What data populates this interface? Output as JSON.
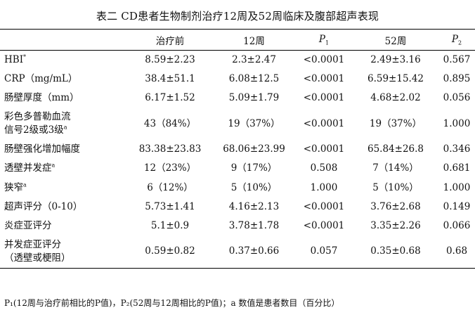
{
  "table": {
    "title": "表二 CD患者生物制剂治疗12周及52周临床及腹部超声表现",
    "headers": {
      "col1": "治疗前",
      "col2": "12周",
      "col3_main": "P",
      "col3_sub": "1",
      "col4": "52周",
      "col5_main": "P",
      "col5_sub": "2"
    },
    "rows": [
      {
        "label": "HBI",
        "mark": "*",
        "v1": "8.59±2.23",
        "v2": "2.3±2.47",
        "p1": "<0.0001",
        "v3": "2.49±3.16",
        "p2": "0.567"
      },
      {
        "label": "CRP（mg/mL）",
        "mark": "",
        "v1": "38.4±51.1",
        "v2": "6.08±12.5",
        "p1": "<0.0001",
        "v3": "6.59±15.42",
        "p2": "0.895"
      },
      {
        "label": "肠壁厚度（mm）",
        "mark": "",
        "v1": "6.17±1.52",
        "v2": "5.09±1.79",
        "p1": "<0.0001",
        "v3": "4.68±2.02",
        "p2": "0.056"
      },
      {
        "label": "彩色多普勒血流",
        "label2": "信号2级或3级",
        "mark": "a",
        "v1": "43（84%）",
        "v2": "19（37%）",
        "p1": "<0.0001",
        "v3": "19（37%）",
        "p2": "1.000"
      },
      {
        "label": "肠壁强化增加幅度",
        "mark": "",
        "v1": "83.38±23.83",
        "v2": "68.06±23.99",
        "p1": "<0.0001",
        "v3": "65.84±26.8",
        "p2": "0.346"
      },
      {
        "label": "透壁并发症",
        "mark": "a",
        "v1": "12（23%）",
        "v2": "9（17%）",
        "p1": "0.508",
        "v3": "7（14%）",
        "p2": "0.681"
      },
      {
        "label": "狭窄",
        "mark": "a",
        "v1": "6（12%）",
        "v2": "5（10%）",
        "p1": "1.000",
        "v3": "5（10%）",
        "p2": "1.000"
      },
      {
        "label": "超声评分（0-10）",
        "mark": "",
        "v1": "5.73±1.41",
        "v2": "4.16±2.13",
        "p1": "<0.0001",
        "v3": "3.76±2.68",
        "p2": "0.149"
      },
      {
        "label": "炎症亚评分",
        "mark": "",
        "v1": "5.1±0.9",
        "v2": "3.78±1.78",
        "p1": "<0.0001",
        "v3": "3.35±2.26",
        "p2": "0.066"
      },
      {
        "label": "并发症亚评分",
        "label2": "（透壁或梗阻）",
        "mark": "",
        "v1": "0.59±0.82",
        "v2": "0.37±0.66",
        "p1": "0.057",
        "v3": "0.35±0.68",
        "p2": "0.68"
      }
    ],
    "footnote": "P₁(12周与治疗前相比的P值)，P₂(52周与12周相比的P值)；a 数值是患者数目（百分比）"
  }
}
